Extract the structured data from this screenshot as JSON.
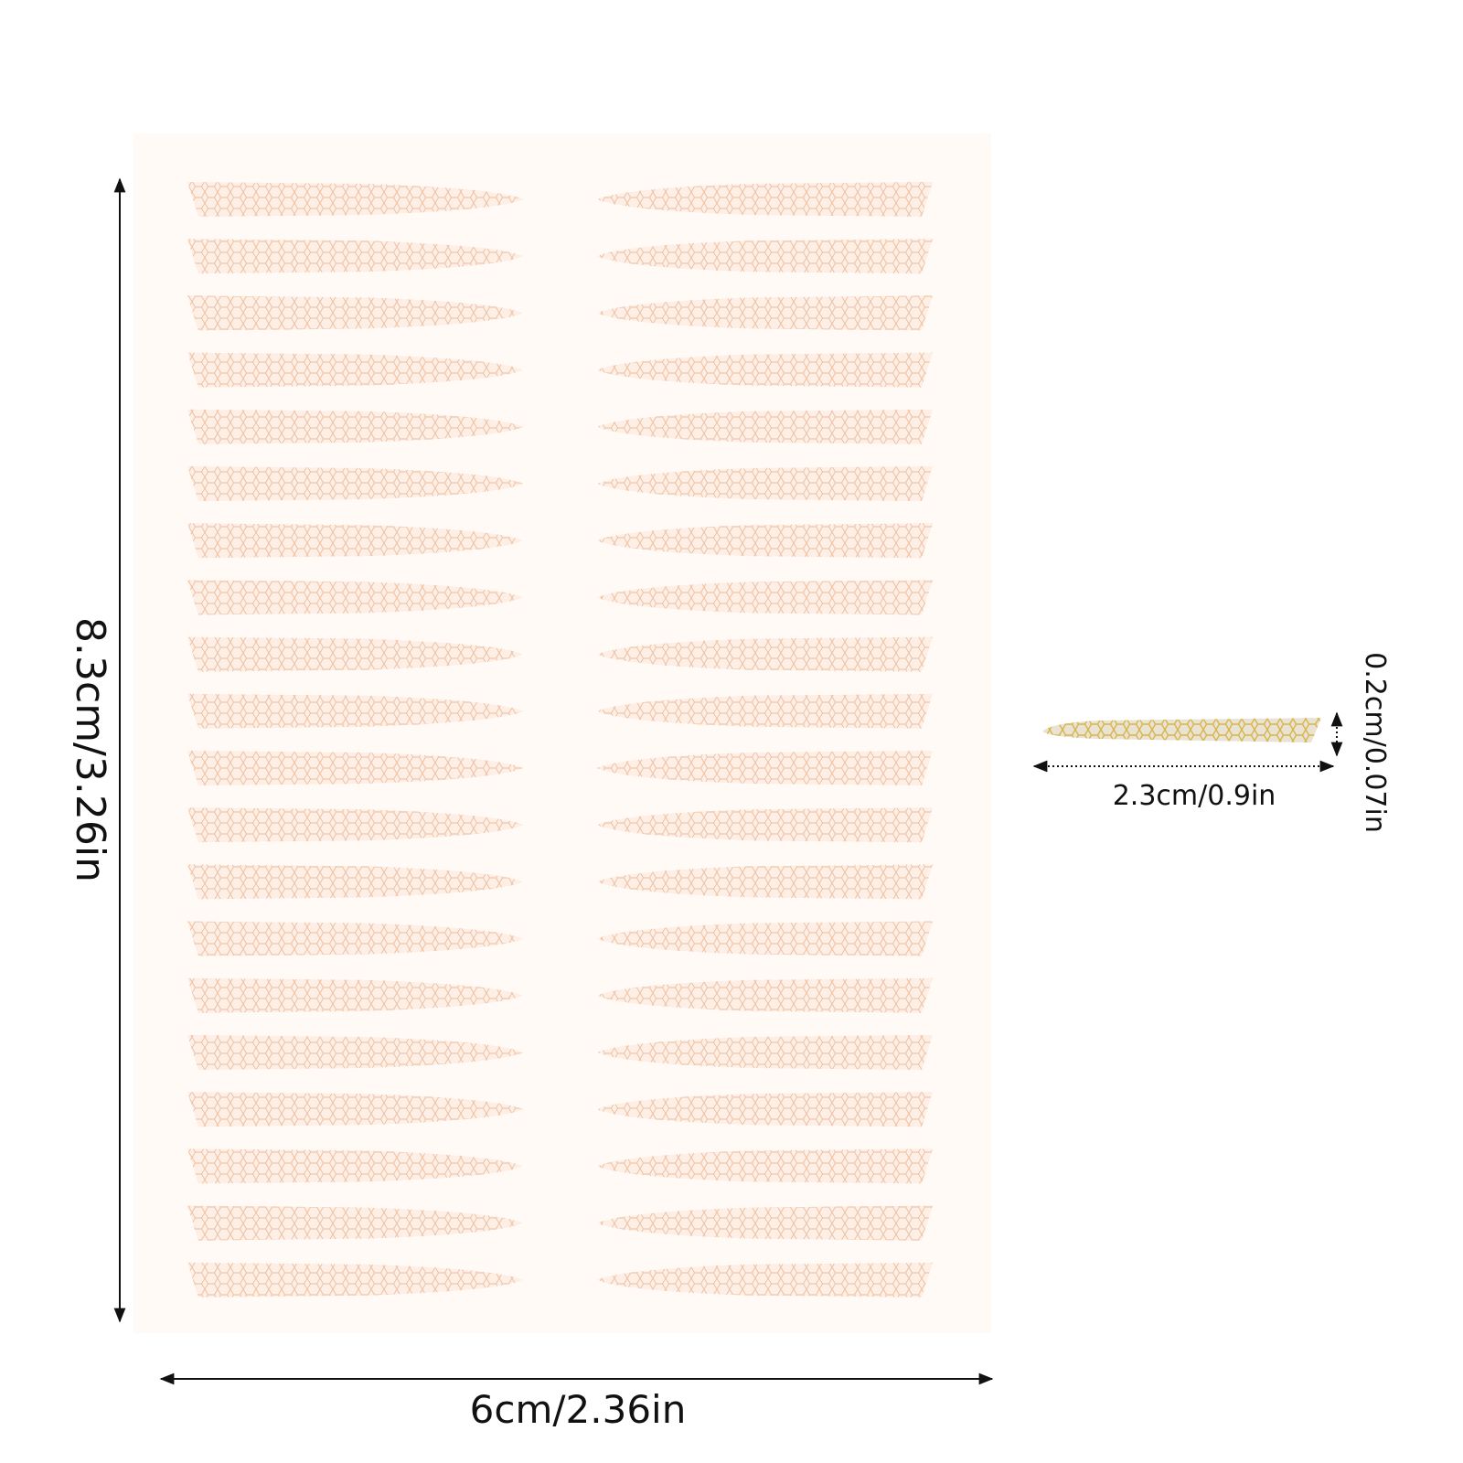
{
  "product": {
    "sheet_columns": 2,
    "strips_per_column": 20,
    "sheet_color": "#fffaf6",
    "strip_fill_color": "#fdeee6",
    "strip_pattern_color": "#e8a87a",
    "sample_fill_color": "#e9e3d4",
    "sample_pattern_color": "#d9b44a"
  },
  "dimensions": {
    "sheet_height_label": "8.3cm/3.26in",
    "sheet_width_label": "6cm/2.36in",
    "strip_length_label": "2.3cm/0.9in",
    "strip_width_label": "0.2cm/0.07in"
  }
}
